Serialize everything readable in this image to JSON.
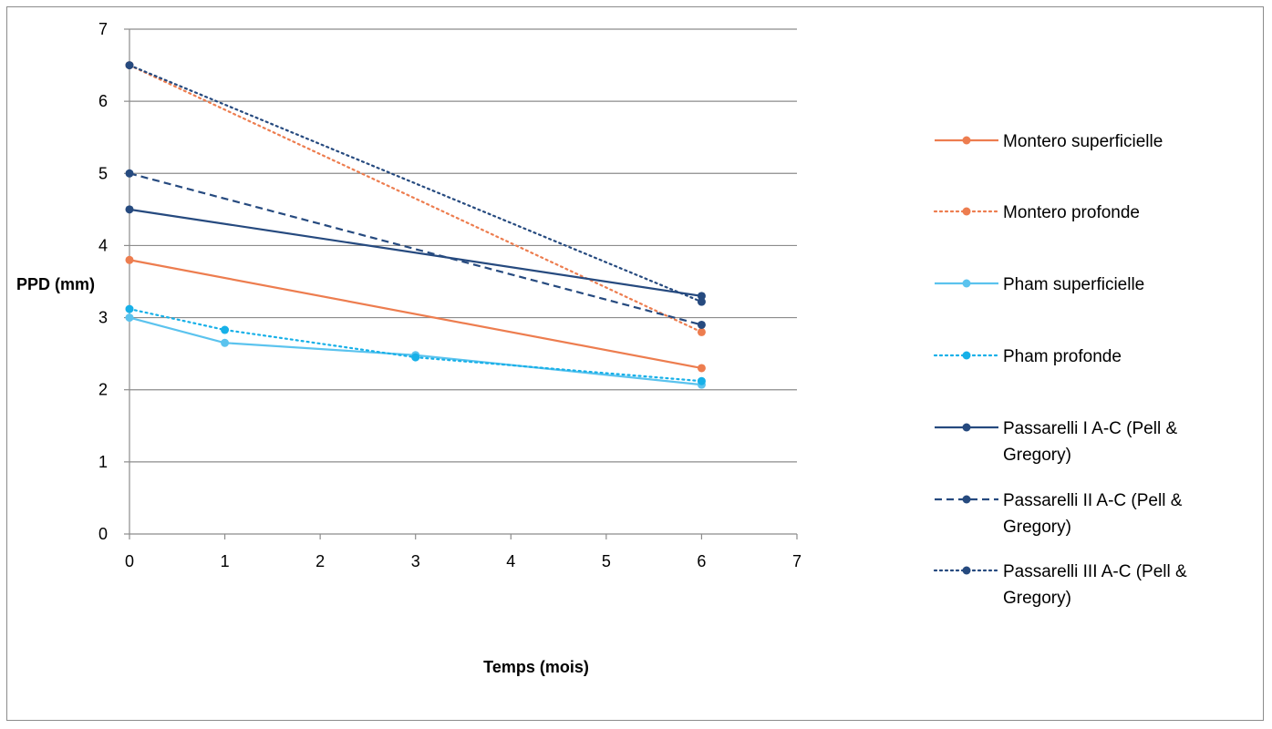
{
  "chart_data": {
    "type": "line",
    "xlabel": "Temps (mois)",
    "ylabel": "PPD (mm)",
    "xlim": [
      0,
      7
    ],
    "ylim": [
      0,
      7
    ],
    "x_ticks": [
      "0",
      "1",
      "2",
      "3",
      "4",
      "5",
      "6",
      "7"
    ],
    "y_ticks": [
      "0",
      "1",
      "2",
      "3",
      "4",
      "5",
      "6",
      "7"
    ],
    "grid": "horizontal",
    "legend_position": "right",
    "series": [
      {
        "name": "Montero superficielle",
        "name_lines": [
          "Montero superficielle"
        ],
        "color": "#ED7D4F",
        "style": "solid",
        "points": [
          [
            0,
            3.8
          ],
          [
            6,
            2.3
          ]
        ]
      },
      {
        "name": "Montero profonde",
        "name_lines": [
          "Montero profonde"
        ],
        "color": "#ED7D4F",
        "style": "dotted",
        "points": [
          [
            0,
            6.5
          ],
          [
            6,
            2.8
          ]
        ]
      },
      {
        "name": "Pham superficielle",
        "name_lines": [
          "Pham superficielle"
        ],
        "color": "#5BC3EE",
        "style": "solid",
        "points": [
          [
            0,
            3.0
          ],
          [
            1,
            2.65
          ],
          [
            3,
            2.48
          ],
          [
            6,
            2.07
          ]
        ]
      },
      {
        "name": "Pham profonde",
        "name_lines": [
          "Pham profonde"
        ],
        "color": "#17B0E8",
        "style": "dotted",
        "points": [
          [
            0,
            3.12
          ],
          [
            1,
            2.83
          ],
          [
            3,
            2.45
          ],
          [
            6,
            2.12
          ]
        ]
      },
      {
        "name": "Passarelli I A-C (Pell & Gregory)",
        "name_lines": [
          "Passarelli I A-C (Pell &",
          "Gregory)"
        ],
        "color": "#264A7F",
        "style": "solid",
        "points": [
          [
            0,
            4.5
          ],
          [
            6,
            3.3
          ]
        ]
      },
      {
        "name": "Passarelli II A-C (Pell & Gregory)",
        "name_lines": [
          "Passarelli II A-C (Pell &",
          "Gregory)"
        ],
        "color": "#264A7F",
        "style": "dashed",
        "points": [
          [
            0,
            5.0
          ],
          [
            6,
            2.9
          ]
        ]
      },
      {
        "name": "Passarelli III A-C (Pell & Gregory)",
        "name_lines": [
          "Passarelli III A-C (Pell &",
          "Gregory)"
        ],
        "color": "#264A7F",
        "style": "dotted",
        "points": [
          [
            0,
            6.5
          ],
          [
            6,
            3.22
          ]
        ]
      }
    ]
  }
}
